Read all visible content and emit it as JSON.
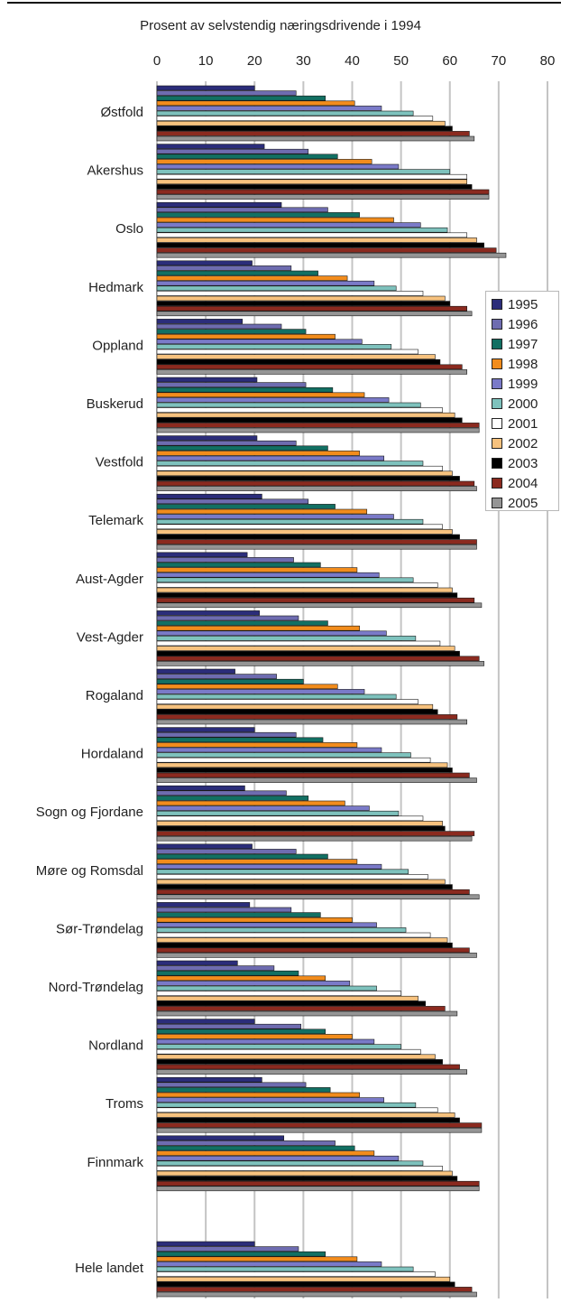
{
  "chart_data": {
    "type": "bar",
    "orientation": "horizontal",
    "title": "Prosent av selvstendig næringsdrivende i 1994",
    "xlim": [
      0,
      80
    ],
    "x_ticks": [
      "0",
      "10",
      "20",
      "30",
      "40",
      "50",
      "60",
      "70",
      "80"
    ],
    "x_axis_position": "top",
    "grid": true,
    "legend_position": "right",
    "categories": [
      "Østfold",
      "Akershus",
      "Oslo",
      "Hedmark",
      "Oppland",
      "Buskerud",
      "Vestfold",
      "Telemark",
      "Aust-Agder",
      "Vest-Agder",
      "Rogaland",
      "Hordaland",
      "Sogn og Fjordane",
      "Møre og Romsdal",
      "Sør-Trøndelag",
      "Nord-Trøndelag",
      "Nordland",
      "Troms",
      "Finnmark",
      "Hele landet"
    ],
    "series": [
      {
        "name": "1995",
        "color": "#2b2d7a",
        "values": [
          20,
          22,
          25.5,
          19.5,
          17.5,
          20.5,
          20.5,
          21.5,
          18.5,
          21,
          16,
          20,
          18,
          19.5,
          19,
          16.5,
          20,
          21.5,
          26,
          20
        ]
      },
      {
        "name": "1996",
        "color": "#6e6cb0",
        "values": [
          28.5,
          31,
          35,
          27.5,
          25.5,
          30.5,
          28.5,
          31,
          28,
          29,
          24.5,
          28.5,
          26.5,
          28.5,
          27.5,
          24,
          29.5,
          30.5,
          36.5,
          29
        ]
      },
      {
        "name": "1997",
        "color": "#127063",
        "values": [
          34.5,
          37,
          41.5,
          33,
          30.5,
          36,
          35,
          36.5,
          33.5,
          35,
          30,
          34,
          31,
          35,
          33.5,
          29,
          34.5,
          35.5,
          40.5,
          34.5
        ]
      },
      {
        "name": "1998",
        "color": "#f28c1c",
        "values": [
          40.5,
          44,
          48.5,
          39,
          36.5,
          42.5,
          41.5,
          43,
          41,
          41.5,
          37,
          41,
          38.5,
          41,
          40,
          34.5,
          40,
          41.5,
          44.5,
          41
        ]
      },
      {
        "name": "1999",
        "color": "#7a7ac8",
        "values": [
          46,
          49.5,
          54,
          44.5,
          42,
          47.5,
          46.5,
          48.5,
          45.5,
          47,
          42.5,
          46,
          43.5,
          46,
          45,
          39.5,
          44.5,
          46.5,
          49.5,
          46
        ]
      },
      {
        "name": "2000",
        "color": "#7ec2bd",
        "values": [
          52.5,
          60,
          59.5,
          49,
          48,
          54,
          54.5,
          54.5,
          52.5,
          53,
          49,
          52,
          49.5,
          51.5,
          51,
          45,
          50,
          53,
          54.5,
          52.5
        ]
      },
      {
        "name": "2001",
        "color": "#ffffff",
        "values": [
          56.5,
          63.5,
          63.5,
          54.5,
          53.5,
          58.5,
          58.5,
          58.5,
          57.5,
          58,
          53.5,
          56,
          54.5,
          55.5,
          56,
          50,
          54,
          57.5,
          58.5,
          57
        ]
      },
      {
        "name": "2002",
        "color": "#f7c27e",
        "values": [
          59,
          63.5,
          65.5,
          59,
          57,
          61,
          60.5,
          60.5,
          60.5,
          61,
          56.5,
          59.5,
          58.5,
          59,
          59.5,
          53.5,
          57,
          61,
          60.5,
          60
        ]
      },
      {
        "name": "2003",
        "color": "#000000",
        "values": [
          60.5,
          64.5,
          67,
          60,
          58,
          62.5,
          62,
          62,
          61.5,
          62,
          57.5,
          60.5,
          59,
          60.5,
          60.5,
          55,
          58.5,
          62,
          61.5,
          61
        ]
      },
      {
        "name": "2004",
        "color": "#8b2a1f",
        "values": [
          64,
          68,
          69.5,
          63.5,
          62.5,
          66,
          65,
          65.5,
          65,
          66,
          61.5,
          64,
          65,
          64,
          64,
          59,
          62,
          66.5,
          66,
          64.5
        ]
      },
      {
        "name": "2005",
        "color": "#959595",
        "values": [
          65,
          68,
          71.5,
          64.5,
          63.5,
          66,
          65.5,
          65.5,
          66.5,
          67,
          63.5,
          65.5,
          64.5,
          66,
          65.5,
          61.5,
          63.5,
          66.5,
          66,
          65.5
        ]
      }
    ]
  }
}
